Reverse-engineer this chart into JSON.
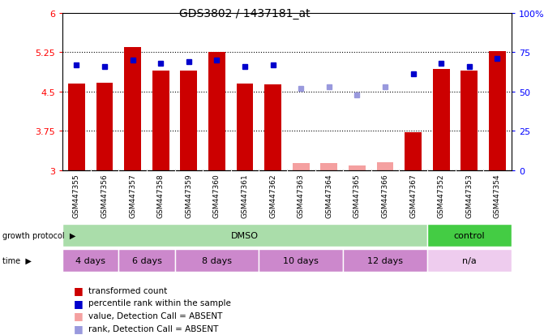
{
  "title": "GDS3802 / 1437181_at",
  "samples": [
    "GSM447355",
    "GSM447356",
    "GSM447357",
    "GSM447358",
    "GSM447359",
    "GSM447360",
    "GSM447361",
    "GSM447362",
    "GSM447363",
    "GSM447364",
    "GSM447365",
    "GSM447366",
    "GSM447367",
    "GSM447352",
    "GSM447353",
    "GSM447354"
  ],
  "bar_values": [
    4.65,
    4.67,
    5.35,
    4.9,
    4.9,
    5.25,
    4.65,
    4.63,
    3.14,
    3.14,
    3.09,
    3.16,
    3.72,
    4.93,
    4.9,
    5.27
  ],
  "bar_absent": [
    false,
    false,
    false,
    false,
    false,
    false,
    false,
    false,
    true,
    true,
    true,
    true,
    false,
    false,
    false,
    false
  ],
  "percentile_values": [
    67,
    66,
    70,
    68,
    69,
    70,
    66,
    67,
    52,
    53,
    48,
    53,
    61,
    68,
    66,
    71
  ],
  "percentile_absent": [
    false,
    false,
    false,
    false,
    false,
    false,
    false,
    false,
    true,
    true,
    true,
    true,
    false,
    false,
    false,
    false
  ],
  "ymin": 3.0,
  "ymax": 6.0,
  "yticks_left": [
    3.0,
    3.75,
    4.5,
    5.25,
    6.0
  ],
  "yticks_right": [
    0,
    25,
    50,
    75,
    100
  ],
  "ytick_labels_left": [
    "3",
    "3.75",
    "4.5",
    "5.25",
    "6"
  ],
  "ytick_labels_right": [
    "0",
    "25",
    "50",
    "75",
    "100%"
  ],
  "bar_color_present": "#cc0000",
  "bar_color_absent": "#f4a0a0",
  "dot_color_present": "#0000cc",
  "dot_color_absent": "#9999dd",
  "plot_bg": "#ffffff",
  "xtick_bg": "#cccccc",
  "protocols": [
    {
      "label": "DMSO",
      "start": 0,
      "end": 13,
      "color": "#aaddaa"
    },
    {
      "label": "control",
      "start": 13,
      "end": 16,
      "color": "#44cc44"
    }
  ],
  "time_groups": [
    {
      "label": "4 days",
      "start": 0,
      "end": 2,
      "color": "#cc88cc"
    },
    {
      "label": "6 days",
      "start": 2,
      "end": 4,
      "color": "#cc88cc"
    },
    {
      "label": "8 days",
      "start": 4,
      "end": 7,
      "color": "#cc88cc"
    },
    {
      "label": "10 days",
      "start": 7,
      "end": 10,
      "color": "#cc88cc"
    },
    {
      "label": "12 days",
      "start": 10,
      "end": 13,
      "color": "#cc88cc"
    },
    {
      "label": "n/a",
      "start": 13,
      "end": 16,
      "color": "#eeccee"
    }
  ],
  "legend_items": [
    {
      "label": "transformed count",
      "color": "#cc0000"
    },
    {
      "label": "percentile rank within the sample",
      "color": "#0000cc"
    },
    {
      "label": "value, Detection Call = ABSENT",
      "color": "#f4a0a0"
    },
    {
      "label": "rank, Detection Call = ABSENT",
      "color": "#9999dd"
    }
  ]
}
